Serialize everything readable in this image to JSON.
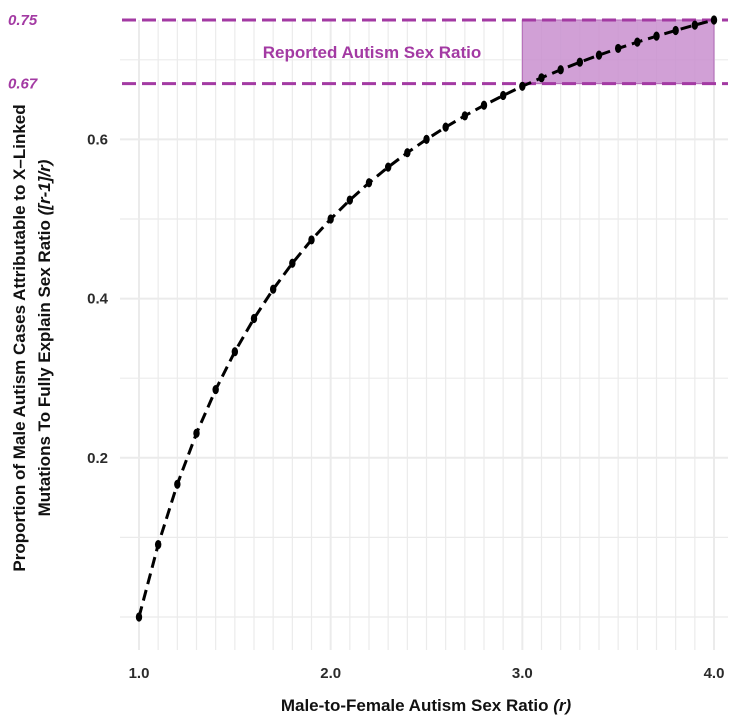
{
  "chart_data": {
    "type": "line",
    "title": "",
    "xlabel": "Male-to-Female Autism Sex Ratio",
    "xlabel_var": "(r)",
    "ylabel_line1": "Proportion of Male Autism Cases Attributable to X–Linked",
    "ylabel_line2": "Mutations To Fully Explain Sex Ratio",
    "ylabel_formula": "([r-1]/r)",
    "xlim": [
      1.0,
      4.0
    ],
    "ylim": [
      0.0,
      0.75
    ],
    "x_ticks": [
      {
        "value": 1.0,
        "label": "1.0"
      },
      {
        "value": 2.0,
        "label": "2.0"
      },
      {
        "value": 3.0,
        "label": "3.0"
      },
      {
        "value": 4.0,
        "label": "4.0"
      }
    ],
    "y_ticks": [
      {
        "value": 0.2,
        "label": "0.2"
      },
      {
        "value": 0.4,
        "label": "0.4"
      },
      {
        "value": 0.6,
        "label": "0.6"
      }
    ],
    "grid": true,
    "line_style": "dashed",
    "series": [
      {
        "x": [
          1.0,
          1.1,
          1.2,
          1.3,
          1.4,
          1.5,
          1.6,
          1.7,
          1.8,
          1.9,
          2.0,
          2.1,
          2.2,
          2.3,
          2.4,
          2.5,
          2.6,
          2.7,
          2.8,
          2.9,
          3.0,
          3.1,
          3.2,
          3.3,
          3.4,
          3.5,
          3.6,
          3.7,
          3.8,
          3.9,
          4.0
        ],
        "y": [
          0.0,
          0.0909,
          0.1667,
          0.2308,
          0.2857,
          0.3333,
          0.375,
          0.4118,
          0.4444,
          0.4737,
          0.5,
          0.5238,
          0.5455,
          0.5652,
          0.5833,
          0.6,
          0.6154,
          0.6296,
          0.6429,
          0.6552,
          0.6667,
          0.6774,
          0.6875,
          0.697,
          0.7059,
          0.7143,
          0.7222,
          0.7297,
          0.7368,
          0.7436,
          0.75
        ]
      }
    ],
    "reference_lines": [
      {
        "y": 0.75,
        "label": "0.75"
      },
      {
        "y": 0.67,
        "label": "0.67"
      }
    ],
    "highlight_band": {
      "x_range": [
        3.0,
        4.0
      ],
      "y_range": [
        0.67,
        0.75
      ],
      "label": "Reported Autism Sex Ratio"
    },
    "colors": {
      "accent": "#A33AA3",
      "band_fill": "#C98FCF",
      "band_edge": "#B36BB8",
      "line": "#000000",
      "grid": "#EBEBEB"
    }
  }
}
